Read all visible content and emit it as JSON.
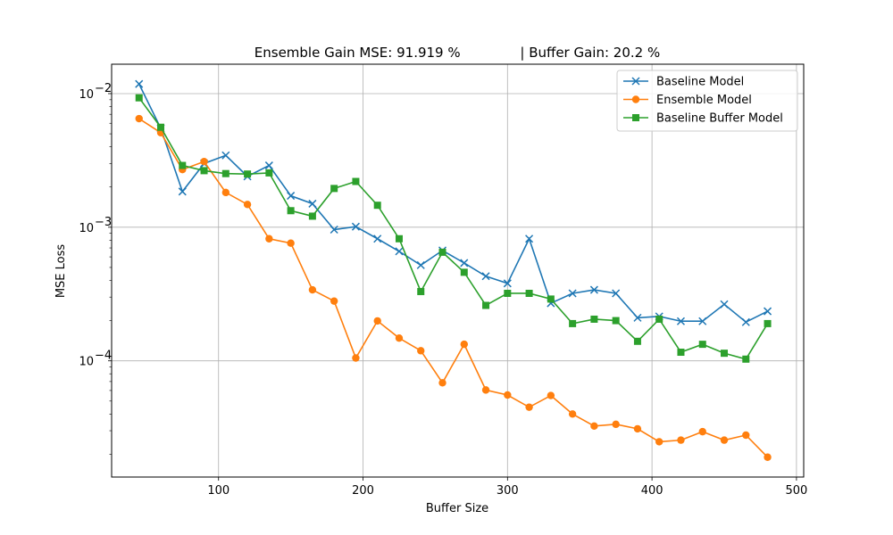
{
  "chart_data": {
    "type": "line",
    "title": "Ensemble Gain MSE: 91.919 %              | Buffer Gain: 20.2 %",
    "xlabel": "Buffer Size",
    "ylabel": "MSE Loss",
    "xlim": [
      26,
      505
    ],
    "ylim": [
      1.35e-05,
      0.0166
    ],
    "yscale": "log",
    "grid": true,
    "legend_position": "upper right",
    "x_ticks": [
      {
        "value": 100,
        "label": "100"
      },
      {
        "value": 200,
        "label": "200"
      },
      {
        "value": 300,
        "label": "300"
      },
      {
        "value": 400,
        "label": "400"
      },
      {
        "value": 500,
        "label": "500"
      }
    ],
    "y_ticks": [
      {
        "value": 0.0001,
        "base": "10",
        "exp": "−4"
      },
      {
        "value": 0.001,
        "base": "10",
        "exp": "−3"
      },
      {
        "value": 0.01,
        "base": "10",
        "exp": "−2"
      }
    ],
    "x": [
      45,
      60,
      75,
      90,
      105,
      120,
      135,
      150,
      165,
      180,
      195,
      210,
      225,
      240,
      255,
      270,
      285,
      300,
      315,
      330,
      345,
      360,
      375,
      390,
      405,
      420,
      435,
      450,
      465,
      480
    ],
    "series": [
      {
        "name": "Baseline Model",
        "color": "#1f77b4",
        "marker": "x",
        "values": [
          0.0118,
          0.0055,
          0.00185,
          0.003,
          0.00345,
          0.0024,
          0.0029,
          0.00172,
          0.0015,
          0.00096,
          0.00101,
          0.00082,
          0.00066,
          0.00052,
          0.00067,
          0.00054,
          0.00043,
          0.00038,
          0.00082,
          0.00027,
          0.00032,
          0.00034,
          0.00032,
          0.00021,
          0.000215,
          0.000198,
          0.000198,
          0.000265,
          0.000195,
          0.000235
        ]
      },
      {
        "name": "Ensemble Model",
        "color": "#ff7f0e",
        "marker": "o",
        "values": [
          0.0065,
          0.0051,
          0.0027,
          0.0031,
          0.00182,
          0.00148,
          0.00082,
          0.00076,
          0.00034,
          0.00028,
          0.000105,
          0.000199,
          0.000148,
          0.000119,
          6.85e-05,
          0.000133,
          6.05e-05,
          5.55e-05,
          4.5e-05,
          5.5e-05,
          4e-05,
          3.25e-05,
          3.35e-05,
          3.1e-05,
          2.48e-05,
          2.55e-05,
          2.95e-05,
          2.55e-05,
          2.78e-05,
          1.9e-05
        ]
      },
      {
        "name": "Baseline Buffer Model",
        "color": "#2ca02c",
        "marker": "s",
        "values": [
          0.0093,
          0.0056,
          0.0029,
          0.00265,
          0.00252,
          0.0025,
          0.00255,
          0.00133,
          0.00121,
          0.00195,
          0.0022,
          0.00146,
          0.00082,
          0.00033,
          0.00065,
          0.00046,
          0.00026,
          0.00032,
          0.00032,
          0.00029,
          0.00019,
          0.000205,
          0.0002,
          0.00014,
          0.000205,
          0.000116,
          0.000133,
          0.000114,
          0.000103,
          0.00019
        ]
      }
    ]
  }
}
